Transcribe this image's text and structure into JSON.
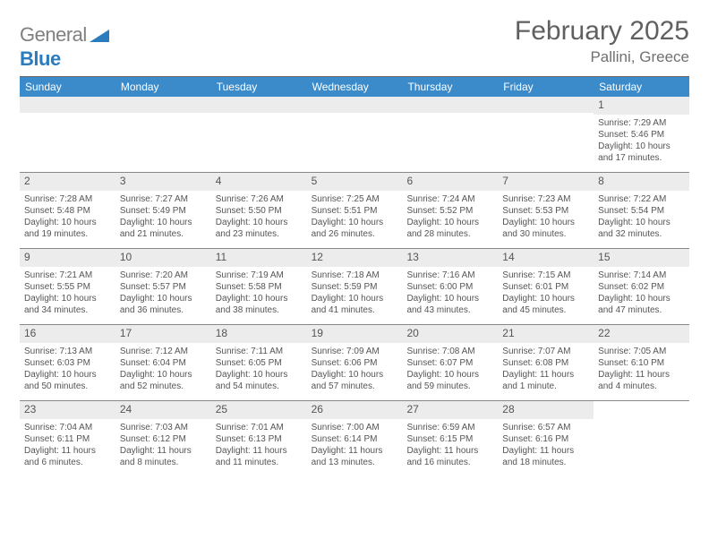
{
  "logo": {
    "text_gray": "General",
    "text_blue": "Blue"
  },
  "title": "February 2025",
  "location": "Pallini, Greece",
  "colors": {
    "header_bg": "#3b8bca",
    "header_text": "#ffffff",
    "daynum_bg": "#ececec",
    "border": "#888888",
    "text": "#555555"
  },
  "day_names": [
    "Sunday",
    "Monday",
    "Tuesday",
    "Wednesday",
    "Thursday",
    "Friday",
    "Saturday"
  ],
  "weeks": [
    [
      null,
      null,
      null,
      null,
      null,
      null,
      {
        "n": "1",
        "sr": "Sunrise: 7:29 AM",
        "ss": "Sunset: 5:46 PM",
        "dl": "Daylight: 10 hours and 17 minutes."
      }
    ],
    [
      {
        "n": "2",
        "sr": "Sunrise: 7:28 AM",
        "ss": "Sunset: 5:48 PM",
        "dl": "Daylight: 10 hours and 19 minutes."
      },
      {
        "n": "3",
        "sr": "Sunrise: 7:27 AM",
        "ss": "Sunset: 5:49 PM",
        "dl": "Daylight: 10 hours and 21 minutes."
      },
      {
        "n": "4",
        "sr": "Sunrise: 7:26 AM",
        "ss": "Sunset: 5:50 PM",
        "dl": "Daylight: 10 hours and 23 minutes."
      },
      {
        "n": "5",
        "sr": "Sunrise: 7:25 AM",
        "ss": "Sunset: 5:51 PM",
        "dl": "Daylight: 10 hours and 26 minutes."
      },
      {
        "n": "6",
        "sr": "Sunrise: 7:24 AM",
        "ss": "Sunset: 5:52 PM",
        "dl": "Daylight: 10 hours and 28 minutes."
      },
      {
        "n": "7",
        "sr": "Sunrise: 7:23 AM",
        "ss": "Sunset: 5:53 PM",
        "dl": "Daylight: 10 hours and 30 minutes."
      },
      {
        "n": "8",
        "sr": "Sunrise: 7:22 AM",
        "ss": "Sunset: 5:54 PM",
        "dl": "Daylight: 10 hours and 32 minutes."
      }
    ],
    [
      {
        "n": "9",
        "sr": "Sunrise: 7:21 AM",
        "ss": "Sunset: 5:55 PM",
        "dl": "Daylight: 10 hours and 34 minutes."
      },
      {
        "n": "10",
        "sr": "Sunrise: 7:20 AM",
        "ss": "Sunset: 5:57 PM",
        "dl": "Daylight: 10 hours and 36 minutes."
      },
      {
        "n": "11",
        "sr": "Sunrise: 7:19 AM",
        "ss": "Sunset: 5:58 PM",
        "dl": "Daylight: 10 hours and 38 minutes."
      },
      {
        "n": "12",
        "sr": "Sunrise: 7:18 AM",
        "ss": "Sunset: 5:59 PM",
        "dl": "Daylight: 10 hours and 41 minutes."
      },
      {
        "n": "13",
        "sr": "Sunrise: 7:16 AM",
        "ss": "Sunset: 6:00 PM",
        "dl": "Daylight: 10 hours and 43 minutes."
      },
      {
        "n": "14",
        "sr": "Sunrise: 7:15 AM",
        "ss": "Sunset: 6:01 PM",
        "dl": "Daylight: 10 hours and 45 minutes."
      },
      {
        "n": "15",
        "sr": "Sunrise: 7:14 AM",
        "ss": "Sunset: 6:02 PM",
        "dl": "Daylight: 10 hours and 47 minutes."
      }
    ],
    [
      {
        "n": "16",
        "sr": "Sunrise: 7:13 AM",
        "ss": "Sunset: 6:03 PM",
        "dl": "Daylight: 10 hours and 50 minutes."
      },
      {
        "n": "17",
        "sr": "Sunrise: 7:12 AM",
        "ss": "Sunset: 6:04 PM",
        "dl": "Daylight: 10 hours and 52 minutes."
      },
      {
        "n": "18",
        "sr": "Sunrise: 7:11 AM",
        "ss": "Sunset: 6:05 PM",
        "dl": "Daylight: 10 hours and 54 minutes."
      },
      {
        "n": "19",
        "sr": "Sunrise: 7:09 AM",
        "ss": "Sunset: 6:06 PM",
        "dl": "Daylight: 10 hours and 57 minutes."
      },
      {
        "n": "20",
        "sr": "Sunrise: 7:08 AM",
        "ss": "Sunset: 6:07 PM",
        "dl": "Daylight: 10 hours and 59 minutes."
      },
      {
        "n": "21",
        "sr": "Sunrise: 7:07 AM",
        "ss": "Sunset: 6:08 PM",
        "dl": "Daylight: 11 hours and 1 minute."
      },
      {
        "n": "22",
        "sr": "Sunrise: 7:05 AM",
        "ss": "Sunset: 6:10 PM",
        "dl": "Daylight: 11 hours and 4 minutes."
      }
    ],
    [
      {
        "n": "23",
        "sr": "Sunrise: 7:04 AM",
        "ss": "Sunset: 6:11 PM",
        "dl": "Daylight: 11 hours and 6 minutes."
      },
      {
        "n": "24",
        "sr": "Sunrise: 7:03 AM",
        "ss": "Sunset: 6:12 PM",
        "dl": "Daylight: 11 hours and 8 minutes."
      },
      {
        "n": "25",
        "sr": "Sunrise: 7:01 AM",
        "ss": "Sunset: 6:13 PM",
        "dl": "Daylight: 11 hours and 11 minutes."
      },
      {
        "n": "26",
        "sr": "Sunrise: 7:00 AM",
        "ss": "Sunset: 6:14 PM",
        "dl": "Daylight: 11 hours and 13 minutes."
      },
      {
        "n": "27",
        "sr": "Sunrise: 6:59 AM",
        "ss": "Sunset: 6:15 PM",
        "dl": "Daylight: 11 hours and 16 minutes."
      },
      {
        "n": "28",
        "sr": "Sunrise: 6:57 AM",
        "ss": "Sunset: 6:16 PM",
        "dl": "Daylight: 11 hours and 18 minutes."
      },
      null
    ]
  ]
}
